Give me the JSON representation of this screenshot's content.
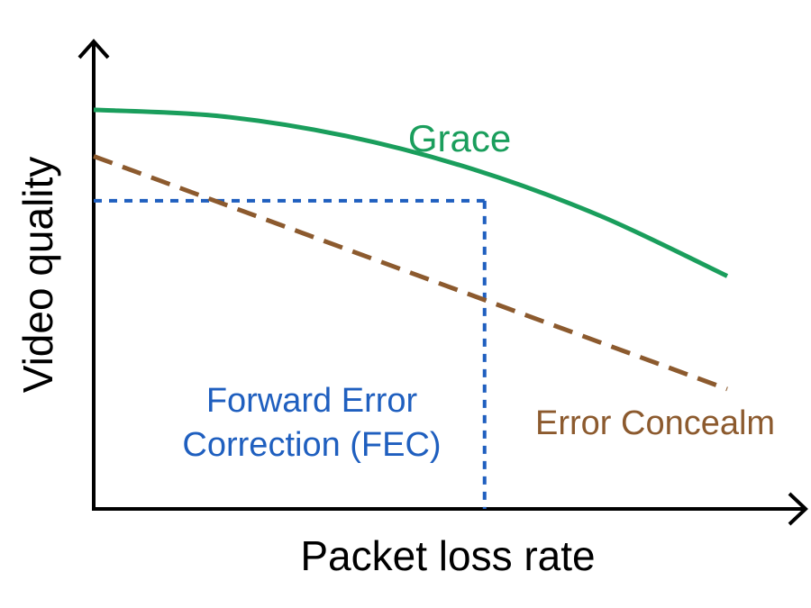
{
  "chart_data": {
    "type": "line",
    "title": "",
    "xlabel": "Packet loss rate",
    "ylabel": "Video quality",
    "xlim": [
      0,
      100
    ],
    "ylim": [
      0,
      100
    ],
    "grid": false,
    "legend": "none",
    "series": [
      {
        "name": "Grace",
        "color": "#1a9e5c",
        "style": "solid",
        "x": [
          0,
          20,
          40,
          60,
          80,
          100
        ],
        "y": [
          81.6,
          80.3,
          76.2,
          69.4,
          59.9,
          47.6
        ]
      },
      {
        "name": "Error Concealm",
        "color": "#8c5a2e",
        "style": "dashed",
        "x": [
          0,
          100
        ],
        "y": [
          72.1,
          24.5
        ]
      }
    ],
    "annotations": [
      {
        "name": "Forward Error Correction (FEC)",
        "lines": [
          "Forward Error",
          "Correction (FEC)"
        ],
        "color": "#1f5fbf",
        "style": "dotted",
        "x": 61.7,
        "y": 63.0
      }
    ]
  }
}
